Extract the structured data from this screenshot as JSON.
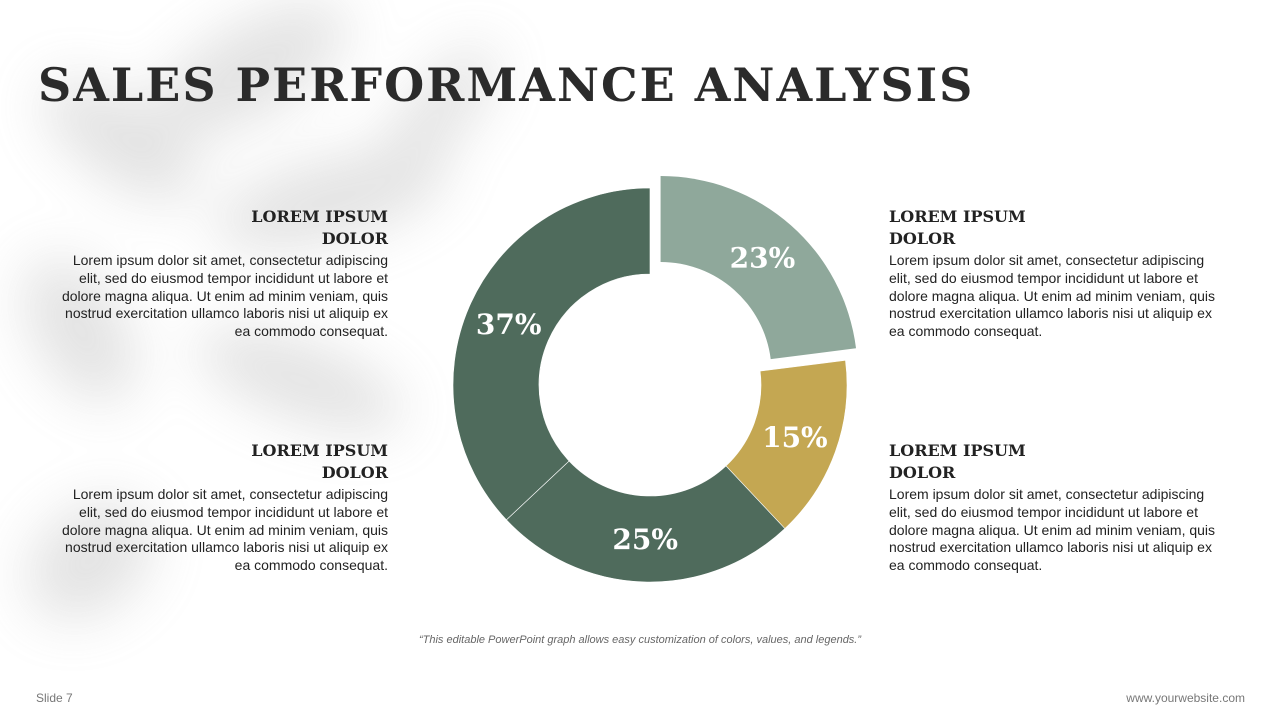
{
  "title": "SALES PERFORMANCE ANALYSIS",
  "blocks": [
    {
      "heading_line1": "LOREM IPSUM",
      "heading_line2": "DOLOR",
      "body": "Lorem ipsum dolor sit amet, consectetur adipiscing elit, sed do eiusmod tempor incididunt ut labore et dolore magna aliqua. Ut enim ad minim veniam, quis nostrud exercitation ullamco laboris nisi ut aliquip ex ea commodo consequat."
    },
    {
      "heading_line1": "LOREM IPSUM",
      "heading_line2": "DOLOR",
      "body": "Lorem ipsum dolor sit amet, consectetur adipiscing elit, sed do eiusmod tempor incididunt ut labore et dolore magna aliqua. Ut enim ad minim veniam, quis nostrud exercitation ullamco laboris nisi ut aliquip ex ea commodo consequat."
    },
    {
      "heading_line1": "LOREM IPSUM",
      "heading_line2": "DOLOR",
      "body": "Lorem ipsum dolor sit amet, consectetur adipiscing elit, sed do eiusmod tempor incididunt ut labore et dolore magna aliqua. Ut enim ad minim veniam, quis nostrud exercitation ullamco laboris nisi ut aliquip ex ea commodo consequat."
    },
    {
      "heading_line1": "LOREM IPSUM",
      "heading_line2": "DOLOR",
      "body": "Lorem ipsum dolor sit amet, consectetur adipiscing elit, sed do eiusmod tempor incididunt ut labore et dolore magna aliqua. Ut enim ad minim veniam, quis nostrud exercitation ullamco laboris nisi ut aliquip ex ea commodo consequat."
    }
  ],
  "chart_data": {
    "type": "pie",
    "slices": [
      {
        "value": 23,
        "label": "23%",
        "color": "#8fa89b",
        "exploded": true
      },
      {
        "value": 15,
        "label": "15%",
        "color": "#c4a752",
        "exploded": false
      },
      {
        "value": 25,
        "label": "25%",
        "color": "#4f6b5c",
        "exploded": false
      },
      {
        "value": 37,
        "label": "37%",
        "color": "#4f6b5c",
        "exploded": false
      }
    ]
  },
  "caption": "“This editable PowerPoint graph allows easy customization of colors, values, and legends.”",
  "slide_number": "Slide 7",
  "website": "www.yourwebsite.com"
}
